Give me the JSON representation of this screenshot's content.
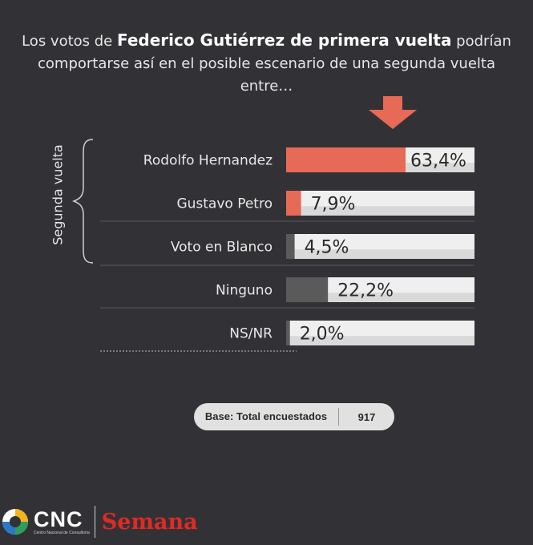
{
  "title": {
    "prefix": "Los votos de ",
    "highlight": "Federico Gutiérrez de primera vuelta",
    "suffix_line1": " podrían",
    "line2": "comportarse así en el posible escenario de una segunda vuelta entre…"
  },
  "group_label": "Segunda vuelta",
  "chart_data": {
    "type": "bar",
    "orientation": "horizontal",
    "title": "",
    "categories": [
      "Rodolfo Hernandez",
      "Gustavo Petro",
      "Voto en Blanco",
      "Ninguno",
      "NS/NR"
    ],
    "values": [
      63.4,
      7.9,
      4.5,
      22.2,
      2.0
    ],
    "value_labels": [
      "63,4%",
      "7,9%",
      "4,5%",
      "22,2%",
      "2,0%"
    ],
    "bar_colors": [
      "#e66a55",
      "#e66a55",
      "#5a5a5a",
      "#5a5a5a",
      "#5a5a5a"
    ],
    "xlim": [
      0,
      100
    ],
    "grid": false,
    "legend": "none"
  },
  "base": {
    "label": "Base: Total encuestados",
    "value": "917"
  },
  "logos": {
    "cnc": "CNC",
    "cnc_sub": "Centro Nacional de Consultoría",
    "semana": "Semana"
  },
  "colors": {
    "background": "#323236",
    "accent": "#e66a55",
    "track": "#efefef",
    "neutral": "#5a5a5a"
  }
}
